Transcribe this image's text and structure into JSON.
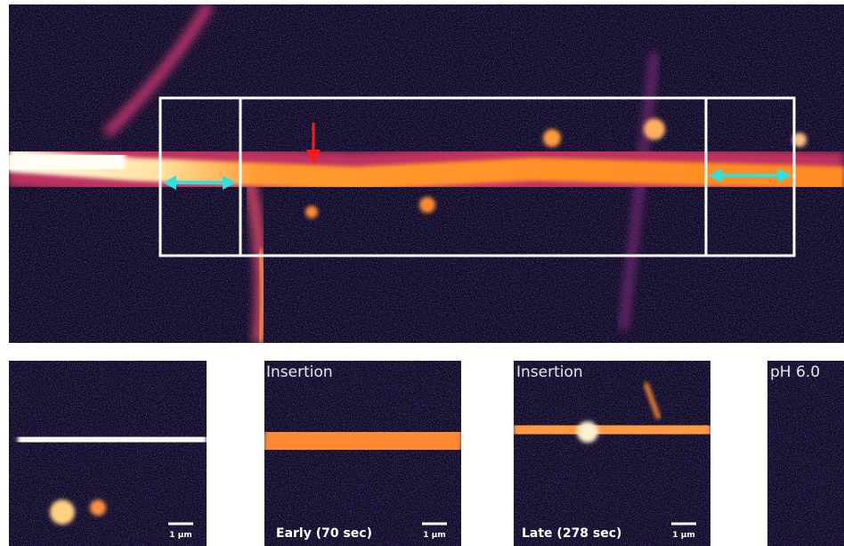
{
  "panels": [
    {
      "scale_bar": "1 µm"
    },
    {
      "top_label": "Insertion",
      "bottom_label": "Early (70 sec)",
      "scale_bar": "1 µm"
    },
    {
      "top_label": "Insertion",
      "bottom_label": "Late (278 sec)",
      "scale_bar": "1 µm"
    },
    {
      "top_label": "pH 6.0"
    }
  ]
}
